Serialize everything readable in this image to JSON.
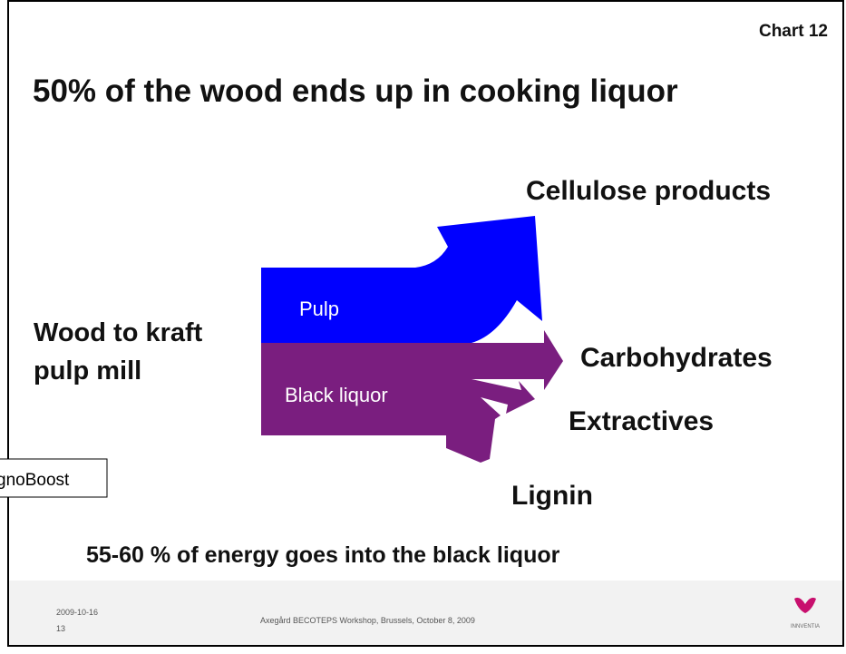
{
  "slide": {
    "chart_label": "Chart  12",
    "title": "50% of the wood ends up in cooking liquor",
    "source": [
      "Wood to kraft",
      "pulp mill"
    ],
    "flows": {
      "pulp": "Pulp",
      "black_liquor": "Black liquor"
    },
    "outputs": {
      "cellulose": "Cellulose products",
      "carbohydrates": "Carbohydrates",
      "extractives": "Extractives",
      "lignin": "Lignin"
    },
    "callout": "gnoBoost",
    "note": "55-60 % of energy goes into the black liquor",
    "footer": {
      "date": "2009-10-16",
      "page": "13",
      "event": "Axegård BECOTEPS Workshop, Brussels, October 8, 2009",
      "logo": "INNVENTIA"
    }
  }
}
